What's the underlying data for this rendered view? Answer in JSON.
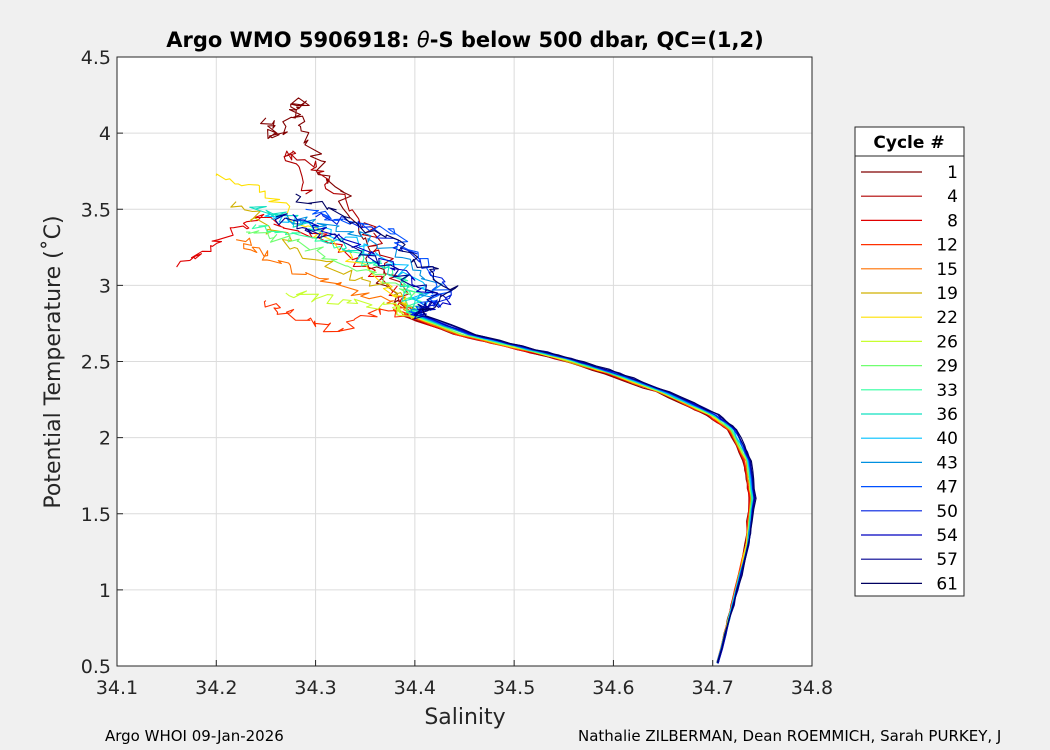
{
  "chart_data": {
    "type": "line",
    "title_prefix": "Argo WMO 5906918: ",
    "title_symbol": "θ",
    "title_suffix": "-S below 500 dbar,  QC=(1,2)",
    "xlabel": "Salinity",
    "ylabel": "Potential Temperature (˚C)",
    "xlim": [
      34.1,
      34.8
    ],
    "ylim": [
      0.5,
      4.5
    ],
    "xticks": [
      34.1,
      34.2,
      34.3,
      34.4,
      34.5,
      34.6,
      34.7,
      34.8
    ],
    "xtick_labels": [
      "34.1",
      "34.2",
      "34.3",
      "34.4",
      "34.5",
      "34.6",
      "34.7",
      "34.8"
    ],
    "yticks": [
      0.5,
      1,
      1.5,
      2,
      2.5,
      3,
      3.5,
      4,
      4.5
    ],
    "ytick_labels": [
      "0.5",
      "1",
      "1.5",
      "2",
      "2.5",
      "3",
      "3.5",
      "4",
      "4.5"
    ],
    "grid": true,
    "legend": {
      "title": "Cycle #",
      "placement": "outside-right",
      "entries": [
        {
          "label": "1",
          "color": "#800000"
        },
        {
          "label": "4",
          "color": "#b00000"
        },
        {
          "label": "8",
          "color": "#e00000"
        },
        {
          "label": "12",
          "color": "#ff3000"
        },
        {
          "label": "15",
          "color": "#ff7000"
        },
        {
          "label": "19",
          "color": "#d0b000"
        },
        {
          "label": "22",
          "color": "#ffe000"
        },
        {
          "label": "26",
          "color": "#c8ff30"
        },
        {
          "label": "29",
          "color": "#70ff70"
        },
        {
          "label": "33",
          "color": "#30ffa0"
        },
        {
          "label": "36",
          "color": "#10e0c0"
        },
        {
          "label": "40",
          "color": "#00c0ff"
        },
        {
          "label": "43",
          "color": "#0090e0"
        },
        {
          "label": "47",
          "color": "#0050ff"
        },
        {
          "label": "50",
          "color": "#0020e0"
        },
        {
          "label": "54",
          "color": "#0000c0"
        },
        {
          "label": "57",
          "color": "#000090"
        },
        {
          "label": "61",
          "color": "#000060"
        }
      ]
    },
    "series_base": {
      "deep": [
        [
          34.705,
          0.52
        ],
        [
          34.72,
          0.9
        ],
        [
          34.735,
          1.3
        ],
        [
          34.74,
          1.6
        ],
        [
          34.735,
          1.85
        ],
        [
          34.72,
          2.05
        ],
        [
          34.7,
          2.15
        ],
        [
          34.65,
          2.3
        ],
        [
          34.6,
          2.42
        ],
        [
          34.55,
          2.52
        ],
        [
          34.5,
          2.6
        ],
        [
          34.45,
          2.68
        ],
        [
          34.4,
          2.8
        ]
      ],
      "upper_start": [
        34.4,
        2.8
      ]
    },
    "series": [
      {
        "name": "1",
        "color": "#800000",
        "upper": [
          [
            34.36,
            3.1
          ],
          [
            34.33,
            3.55
          ],
          [
            34.3,
            3.85
          ],
          [
            34.28,
            4.15
          ],
          [
            34.285,
            4.21
          ],
          [
            34.26,
            3.95
          ],
          [
            34.25,
            4.1
          ]
        ]
      },
      {
        "name": "4",
        "color": "#b00000",
        "upper": [
          [
            34.37,
            3.2
          ],
          [
            34.35,
            3.4
          ],
          [
            34.3,
            3.75
          ],
          [
            34.27,
            3.9
          ],
          [
            34.29,
            3.6
          ]
        ]
      },
      {
        "name": "8",
        "color": "#e00000",
        "upper": [
          [
            34.36,
            3.05
          ],
          [
            34.31,
            3.3
          ],
          [
            34.24,
            3.45
          ],
          [
            34.2,
            3.3
          ],
          [
            34.16,
            3.12
          ]
        ]
      },
      {
        "name": "12",
        "color": "#ff3000",
        "upper": [
          [
            34.37,
            2.85
          ],
          [
            34.32,
            2.7
          ],
          [
            34.28,
            2.8
          ],
          [
            34.25,
            2.9
          ]
        ]
      },
      {
        "name": "15",
        "color": "#ff7000",
        "upper": [
          [
            34.37,
            2.9
          ],
          [
            34.3,
            3.05
          ],
          [
            34.25,
            3.2
          ],
          [
            34.22,
            3.3
          ]
        ]
      },
      {
        "name": "19",
        "color": "#d0b000",
        "upper": [
          [
            34.38,
            2.95
          ],
          [
            34.32,
            3.1
          ],
          [
            34.26,
            3.35
          ],
          [
            34.22,
            3.55
          ]
        ]
      },
      {
        "name": "22",
        "color": "#ffe000",
        "upper": [
          [
            34.37,
            3.0
          ],
          [
            34.31,
            3.3
          ],
          [
            34.25,
            3.6
          ],
          [
            34.2,
            3.72
          ]
        ]
      },
      {
        "name": "26",
        "color": "#c8ff30",
        "upper": [
          [
            34.38,
            2.85
          ],
          [
            34.32,
            2.9
          ],
          [
            34.27,
            2.95
          ]
        ]
      },
      {
        "name": "29",
        "color": "#70ff70",
        "upper": [
          [
            34.39,
            3.0
          ],
          [
            34.33,
            3.15
          ],
          [
            34.27,
            3.3
          ],
          [
            34.23,
            3.35
          ]
        ]
      },
      {
        "name": "33",
        "color": "#30ffa0",
        "upper": [
          [
            34.4,
            3.0
          ],
          [
            34.34,
            3.2
          ],
          [
            34.28,
            3.35
          ],
          [
            34.24,
            3.4
          ]
        ]
      },
      {
        "name": "36",
        "color": "#10e0c0",
        "upper": [
          [
            34.39,
            3.05
          ],
          [
            34.33,
            3.25
          ],
          [
            34.27,
            3.45
          ],
          [
            34.24,
            3.5
          ]
        ]
      },
      {
        "name": "40",
        "color": "#00c0ff",
        "upper": [
          [
            34.41,
            3.0
          ],
          [
            34.35,
            3.25
          ],
          [
            34.29,
            3.4
          ],
          [
            34.25,
            3.45
          ]
        ]
      },
      {
        "name": "43",
        "color": "#0090e0",
        "upper": [
          [
            34.42,
            3.0
          ],
          [
            34.36,
            3.3
          ],
          [
            34.3,
            3.4
          ],
          [
            34.26,
            3.45
          ]
        ]
      },
      {
        "name": "47",
        "color": "#0050ff",
        "upper": [
          [
            34.43,
            2.95
          ],
          [
            34.38,
            3.35
          ],
          [
            34.33,
            3.4
          ],
          [
            34.29,
            3.5
          ]
        ]
      },
      {
        "name": "50",
        "color": "#0020e0",
        "upper": [
          [
            34.44,
            2.95
          ],
          [
            34.4,
            3.2
          ],
          [
            34.35,
            3.4
          ],
          [
            34.3,
            3.45
          ]
        ]
      },
      {
        "name": "54",
        "color": "#0000c0",
        "upper": [
          [
            34.43,
            2.9
          ],
          [
            34.38,
            3.1
          ],
          [
            34.33,
            3.3
          ],
          [
            34.28,
            3.45
          ]
        ]
      },
      {
        "name": "57",
        "color": "#000090",
        "upper": [
          [
            34.42,
            2.9
          ],
          [
            34.37,
            3.15
          ],
          [
            34.3,
            3.35
          ],
          [
            34.26,
            3.45
          ]
        ]
      },
      {
        "name": "61",
        "color": "#000060",
        "upper": [
          [
            34.44,
            2.95
          ],
          [
            34.4,
            3.2
          ],
          [
            34.33,
            3.45
          ],
          [
            34.28,
            3.6
          ]
        ]
      }
    ]
  },
  "footer": {
    "left": "Argo WHOI 09-Jan-2026",
    "right": "Nathalie ZILBERMAN, Dean ROEMMICH, Sarah PURKEY, J"
  }
}
